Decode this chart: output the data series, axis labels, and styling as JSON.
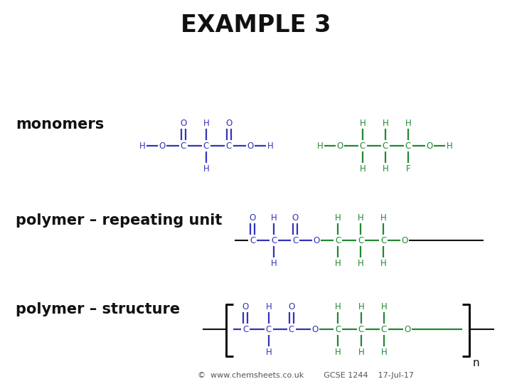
{
  "title": "EXAMPLE 3",
  "title_bg": "#c8c8e8",
  "bg_color": "#ffffff",
  "blue_color": "#3333bb",
  "green_color": "#228833",
  "black_color": "#111111",
  "footer_text": "©  www.chemsheets.co.uk        GCSE 1244    17-Jul-17",
  "row_labels": [
    "monomers",
    "polymer – repeating unit",
    "polymer – structure"
  ],
  "label_fontsize": 15,
  "title_fontsize": 24
}
